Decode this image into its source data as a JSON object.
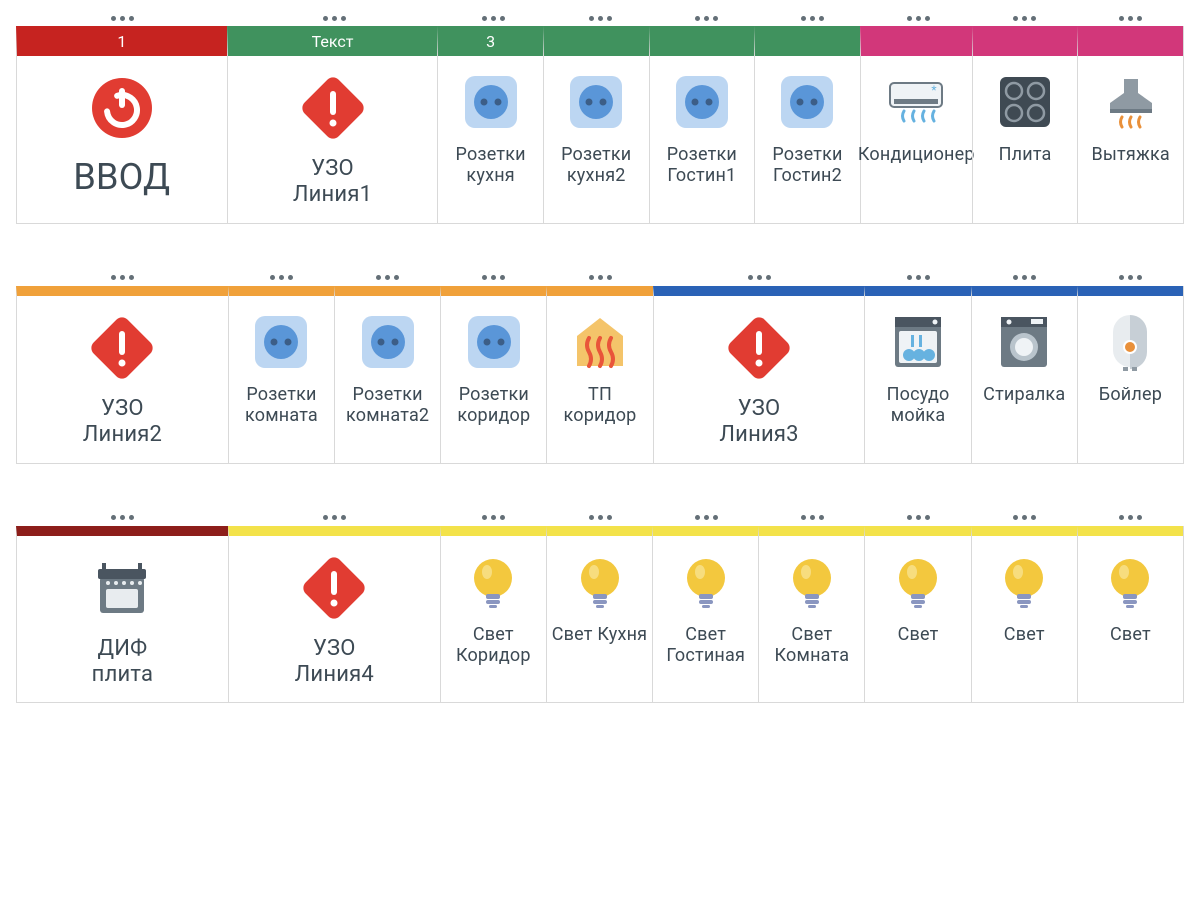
{
  "colors": {
    "red": "#c62320",
    "green": "#40925e",
    "pink": "#d2377a",
    "orange": "#f0a13a",
    "blue": "#2a62b6",
    "maroon": "#8d1e1a",
    "yellow": "#f3e24a",
    "border": "#d9d9d9",
    "text": "#3d4a54",
    "dot": "#646f77"
  },
  "layout": {
    "moduleUnit": 112,
    "rows": [
      {
        "dotsAbove": [
          2,
          2,
          1,
          1,
          1,
          1,
          1,
          1,
          1
        ],
        "modules": [
          {
            "w": 2,
            "bar": "red",
            "barTall": true,
            "barText": "1",
            "icon": "power",
            "label": "ВВОД",
            "size": "xbig"
          },
          {
            "w": 2,
            "bar": "green",
            "barTall": true,
            "barText": "Текст",
            "icon": "rcd",
            "label": "УЗО\nЛиния1",
            "size": "big"
          },
          {
            "w": 1,
            "bar": "green",
            "barTall": true,
            "barText": "3",
            "icon": "socket",
            "label": "Розетки кухня"
          },
          {
            "w": 1,
            "bar": "green",
            "barTall": true,
            "icon": "socket",
            "label": "Розетки кухня2"
          },
          {
            "w": 1,
            "bar": "green",
            "barTall": true,
            "icon": "socket",
            "label": "Розетки Гостин1"
          },
          {
            "w": 1,
            "bar": "green",
            "barTall": true,
            "icon": "socket",
            "label": "Розетки Гостин2"
          },
          {
            "w": 1,
            "bar": "pink",
            "barTall": true,
            "icon": "ac",
            "label": "Кондиционер"
          },
          {
            "w": 1,
            "bar": "pink",
            "barTall": true,
            "icon": "cooktop",
            "label": "Плита"
          },
          {
            "w": 1,
            "bar": "pink",
            "barTall": true,
            "icon": "hood",
            "label": "Вытяжка"
          }
        ]
      },
      {
        "dotsAbove": [
          2,
          1,
          1,
          1,
          1,
          2,
          1,
          1,
          1
        ],
        "modules": [
          {
            "w": 2,
            "bar": "orange",
            "icon": "rcd",
            "label": "УЗО\nЛиния2",
            "size": "big"
          },
          {
            "w": 1,
            "bar": "orange",
            "icon": "socket",
            "label": "Розетки комната"
          },
          {
            "w": 1,
            "bar": "orange",
            "icon": "socket",
            "label": "Розетки комната2"
          },
          {
            "w": 1,
            "bar": "orange",
            "icon": "socket",
            "label": "Розетки коридор"
          },
          {
            "w": 1,
            "bar": "orange",
            "icon": "heat",
            "label": "ТП коридор"
          },
          {
            "w": 2,
            "bar": "blue",
            "icon": "rcd",
            "label": "УЗО\nЛиния3",
            "size": "big"
          },
          {
            "w": 1,
            "bar": "blue",
            "icon": "dishwasher",
            "label": "Посудо мойка"
          },
          {
            "w": 1,
            "bar": "blue",
            "icon": "washer",
            "label": "Стиралка"
          },
          {
            "w": 1,
            "bar": "blue",
            "icon": "boiler",
            "label": "Бойлер"
          }
        ]
      },
      {
        "dotsAbove": [
          2,
          2,
          1,
          1,
          1,
          1,
          1,
          1,
          1
        ],
        "modules": [
          {
            "w": 2,
            "bar": "maroon",
            "icon": "oven",
            "label": "ДИФ\nплита",
            "size": "big"
          },
          {
            "w": 2,
            "bar": "yellow",
            "icon": "rcd",
            "label": "УЗО\nЛиния4",
            "size": "big"
          },
          {
            "w": 1,
            "bar": "yellow",
            "icon": "bulb",
            "label": "Свет Коридор"
          },
          {
            "w": 1,
            "bar": "yellow",
            "icon": "bulb",
            "label": "Свет Кухня"
          },
          {
            "w": 1,
            "bar": "yellow",
            "icon": "bulb",
            "label": "Свет Гостиная"
          },
          {
            "w": 1,
            "bar": "yellow",
            "icon": "bulb",
            "label": "Свет Комната"
          },
          {
            "w": 1,
            "bar": "yellow",
            "icon": "bulb",
            "label": "Свет"
          },
          {
            "w": 1,
            "bar": "yellow",
            "icon": "bulb",
            "label": "Свет"
          },
          {
            "w": 1,
            "bar": "yellow",
            "icon": "bulb",
            "label": "Свет"
          }
        ]
      }
    ]
  },
  "iconStyle": {
    "power": {
      "fill": "#e13c32",
      "fg": "#ffffff"
    },
    "rcd": {
      "fill": "#e13c32",
      "fg": "#ffffff"
    },
    "socket": {
      "bg": "#bcd6f2",
      "plate": "#5a96d8",
      "hole": "#3c5e87"
    },
    "ac": {
      "body": "#6d7a84",
      "accent": "#66b2e0"
    },
    "cooktop": {
      "body": "#3f4a53",
      "ring": "#8f9aa3"
    },
    "hood": {
      "body": "#8f9aa3",
      "heat": "#e9903a"
    },
    "heat": {
      "house": "#f4c46a",
      "wave": "#e9553a"
    },
    "dishwasher": {
      "body": "#6d7a84",
      "panel": "#4a5560",
      "accent": "#eff3f6",
      "plates": "#66b2e0"
    },
    "washer": {
      "body": "#6d7a84",
      "drum": "#b9c4cc",
      "accent": "#4a5560"
    },
    "boiler": {
      "body": "#e8ecef",
      "shadow": "#c7cfd6",
      "dial": "#e9903a"
    },
    "oven": {
      "body": "#6d7a84",
      "top": "#4a5560",
      "knob": "#e8ecef"
    },
    "bulb": {
      "glass": "#f3c83e",
      "base": "#8a96c0",
      "shine": "#f7dd7e"
    }
  }
}
